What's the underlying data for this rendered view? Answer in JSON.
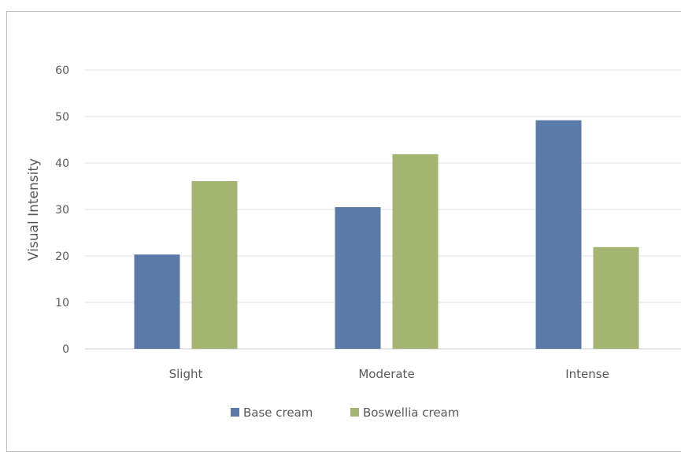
{
  "chart_data": {
    "type": "bar",
    "categories": [
      "Slight",
      "Moderate",
      "Intense"
    ],
    "series": [
      {
        "name": "Base cream",
        "values": [
          20.3,
          30.5,
          49.2
        ],
        "color": "#5b7aa8"
      },
      {
        "name": "Boswellia cream",
        "values": [
          36.1,
          41.9,
          21.9
        ],
        "color": "#a3b571"
      }
    ],
    "title": "",
    "xlabel": "",
    "ylabel": "Visual Intensity",
    "ylim": [
      0,
      60
    ],
    "yticks": [
      0,
      10,
      20,
      30,
      40,
      50,
      60
    ],
    "grid": true,
    "legend": "bottom"
  }
}
